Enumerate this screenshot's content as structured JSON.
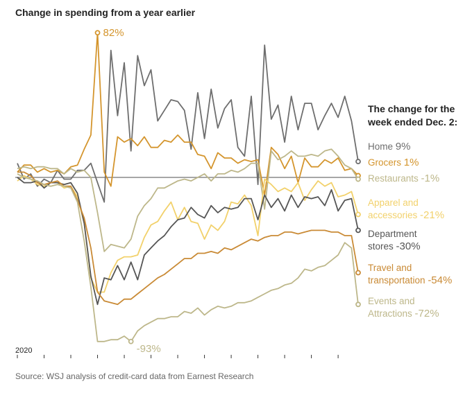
{
  "title": "Change in spending from a year earlier",
  "source": "Source: WSJ analysis of credit-card data from Earnest Research",
  "legend_heading": [
    "The change for the",
    "week ended Dec. 2:"
  ],
  "chart_data": {
    "type": "line",
    "title": "Change in spending from a year earlier",
    "x_start_label": "2020",
    "x_label_position": "bottom-left",
    "zero_line": true,
    "grid": false,
    "y_unit": "%",
    "ylim": [
      -100,
      100
    ],
    "legend_position": "right",
    "annotations": [
      {
        "series": "Grocers",
        "text": "82%"
      },
      {
        "series": "Events and Attractions",
        "text": "-93%"
      }
    ],
    "series": [
      {
        "name": "Home",
        "label_lines": [
          "Home"
        ],
        "value_label": "9%",
        "color": "#6e6e6e",
        "values": [
          8,
          -1,
          2,
          -5,
          -1,
          -3,
          4,
          -1,
          -1,
          4,
          4,
          8,
          -3,
          -14,
          72,
          35,
          65,
          15,
          69,
          52,
          61,
          32,
          38,
          44,
          43,
          38,
          16,
          48,
          22,
          50,
          28,
          39,
          44,
          17,
          12,
          46,
          -4,
          75,
          33,
          41,
          20,
          46,
          27,
          42,
          42,
          27,
          35,
          42,
          34,
          46,
          32,
          9
        ]
      },
      {
        "name": "Grocers",
        "label_lines": [
          "Grocers"
        ],
        "value_label": "1%",
        "color": "#d4952d",
        "values": [
          3,
          7,
          7,
          3,
          5,
          3,
          4,
          2,
          6,
          7,
          16,
          24,
          82,
          3,
          -5,
          23,
          20,
          22,
          18,
          23,
          17,
          17,
          21,
          20,
          24,
          20,
          20,
          13,
          12,
          5,
          14,
          11,
          11,
          8,
          10,
          9,
          10,
          -10,
          17,
          13,
          5,
          12,
          -3,
          11,
          6,
          6,
          10,
          8,
          11,
          4,
          5,
          1
        ]
      },
      {
        "name": "Restaurants",
        "label_lines": [
          "Restaurants"
        ],
        "value_label": "-1%",
        "color": "#bdb78a",
        "values": [
          5,
          6,
          5,
          6,
          6,
          5,
          5,
          2,
          5,
          3,
          4,
          0,
          -20,
          -42,
          -38,
          -39,
          -40,
          -35,
          -22,
          -16,
          -12,
          -6,
          -6,
          -4,
          -2,
          -1,
          -2,
          0,
          2,
          -2,
          2,
          2,
          4,
          3,
          5,
          8,
          8,
          -18,
          15,
          10,
          12,
          15,
          12,
          12,
          13,
          12,
          15,
          16,
          12,
          7,
          5,
          -1
        ]
      },
      {
        "name": "Apparel and accessories",
        "label_lines": [
          "Apparel and",
          "accessories"
        ],
        "value_label": "-21%",
        "color": "#f2d16b",
        "values": [
          -2,
          1,
          -1,
          -4,
          -5,
          -3,
          -3,
          -6,
          -5,
          -11,
          -26,
          -57,
          -65,
          -65,
          -54,
          -47,
          -45,
          -45,
          -44,
          -34,
          -27,
          -25,
          -19,
          -14,
          -24,
          -17,
          -25,
          -26,
          -35,
          -27,
          -30,
          -25,
          -14,
          -15,
          -10,
          -16,
          -33,
          -1,
          -4,
          -8,
          -6,
          -8,
          -3,
          -13,
          -7,
          -2,
          -5,
          -3,
          -11,
          -10,
          -8,
          -21
        ]
      },
      {
        "name": "Department stores",
        "label_lines": [
          "Department",
          "stores"
        ],
        "value_label": "-30%",
        "color": "#555555",
        "values": [
          0,
          -3,
          -3,
          -2,
          -6,
          -3,
          -3,
          -4,
          -3,
          -9,
          -26,
          -56,
          -72,
          -57,
          -58,
          -50,
          -58,
          -48,
          -58,
          -44,
          -40,
          -36,
          -33,
          -28,
          -24,
          -23,
          -17,
          -21,
          -23,
          -16,
          -20,
          -17,
          -18,
          -17,
          -12,
          -12,
          -24,
          -10,
          -17,
          -12,
          -19,
          -10,
          -17,
          -11,
          -12,
          -11,
          -16,
          -7,
          -19,
          -13,
          -12,
          -30
        ]
      },
      {
        "name": "Travel and transportation",
        "label_lines": [
          "Travel and",
          "transportation"
        ],
        "value_label": "-54%",
        "color": "#c98a35",
        "values": [
          3,
          3,
          1,
          -3,
          -4,
          -3,
          -2,
          -5,
          -5,
          -13,
          -23,
          -40,
          -65,
          -70,
          -71,
          -72,
          -69,
          -69,
          -66,
          -63,
          -60,
          -57,
          -55,
          -52,
          -49,
          -46,
          -46,
          -43,
          -43,
          -42,
          -43,
          -40,
          -41,
          -39,
          -37,
          -35,
          -36,
          -34,
          -33,
          -33,
          -31,
          -31,
          -32,
          -31,
          -30,
          -30,
          -30,
          -31,
          -31,
          -33,
          -33,
          -54
        ]
      },
      {
        "name": "Events and Attractions",
        "label_lines": [
          "Events and",
          "Attractions"
        ],
        "value_label": "-72%",
        "color": "#bdb78a",
        "values": [
          2,
          0,
          -1,
          -2,
          -4,
          -5,
          -4,
          -5,
          -6,
          -14,
          -36,
          -62,
          -93,
          -93,
          -92,
          -92,
          -90,
          -93,
          -87,
          -84,
          -82,
          -80,
          -80,
          -79,
          -79,
          -76,
          -77,
          -74,
          -78,
          -75,
          -73,
          -74,
          -73,
          -71,
          -71,
          -70,
          -68,
          -66,
          -64,
          -63,
          -61,
          -60,
          -57,
          -52,
          -53,
          -51,
          -50,
          -47,
          -44,
          -37,
          -40,
          -72
        ]
      }
    ]
  }
}
